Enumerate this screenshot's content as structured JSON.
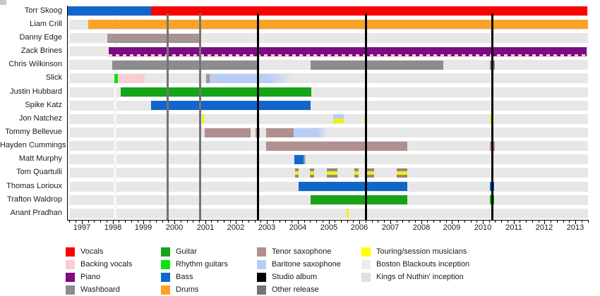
{
  "chart_data": {
    "type": "timeline",
    "axis": {
      "start": 1996.52,
      "end": 2013.41,
      "year_labels": [
        1997,
        1998,
        1999,
        2000,
        2001,
        2002,
        2003,
        2004,
        2005,
        2006,
        2007,
        2008,
        2009,
        2010,
        2011,
        2012,
        2013
      ],
      "minor_tick_step": 0.2
    },
    "palette": {
      "vocals": "#fe0000",
      "backing_vocals": "#f8cdd3",
      "piano": "#7c0c82",
      "washboard": "#8c8c8c",
      "guitar": "#17a317",
      "rhythm_guitars": "#10e010",
      "bass": "#1166c9",
      "drums": "#fca228",
      "tenor_sax": "#b28f8f",
      "baritone_sax": "#b9cdf4",
      "studio_album": "#000000",
      "other_release": "#747474",
      "touring": "#f2ef12",
      "touring_legend": "#ffff00",
      "boston_inception": "#ededed",
      "kings_inception": "#e0e0e0",
      "gray_mauve": "#a69494",
      "quartulli_gray": "#94897f",
      "row_bg": "#e7e7e7"
    },
    "members": [
      {
        "name": "Torr Skoog",
        "segments": [
          {
            "s": 1996.52,
            "e": 1999.24,
            "c": "bass"
          },
          {
            "s": 1999.24,
            "e": 2013.38,
            "c": "vocals"
          }
        ]
      },
      {
        "name": "Liam Crill",
        "segments": [
          {
            "s": 1997.2,
            "e": 2013.41,
            "c": "drums"
          }
        ]
      },
      {
        "name": "Danny Edge",
        "segments": [
          {
            "s": 1997.82,
            "e": 2000.82,
            "c": "gray_mauve"
          }
        ]
      },
      {
        "name": "Zack Brines",
        "segments": [
          {
            "s": 1997.88,
            "e": 2013.38,
            "c": "piano",
            "dash_bottom": "backing_vocals"
          }
        ]
      },
      {
        "name": "Chris Wilkinson",
        "segments": [
          {
            "s": 1997.98,
            "e": 2002.7,
            "c": "washboard"
          },
          {
            "s": 2004.42,
            "e": 2008.72,
            "c": "washboard"
          },
          {
            "s": 2010.22,
            "e": 2010.38,
            "c": "washboard"
          }
        ]
      },
      {
        "name": "Slick",
        "segments": [
          {
            "s": 1998.05,
            "e": 1998.16,
            "c": "rhythm_guitars"
          },
          {
            "s": 1998.16,
            "e": 1999.04,
            "c": "backing_vocals"
          },
          {
            "s": 2001.02,
            "e": 2001.15,
            "c": "tenor_sax"
          },
          {
            "s": 2001.15,
            "e": 2003.88,
            "c": "baritone_sax",
            "fade": true
          }
        ]
      },
      {
        "name": "Justin Hubbard",
        "segments": [
          {
            "s": 1998.26,
            "e": 2004.44,
            "c": "guitar"
          }
        ]
      },
      {
        "name": "Spike Katz",
        "segments": [
          {
            "s": 1999.24,
            "e": 2004.42,
            "c": "bass"
          }
        ]
      },
      {
        "name": "Jon Natchez",
        "segments": [
          {
            "s": 2000.89,
            "e": 2000.97,
            "c": "touring"
          },
          {
            "s": 2005.15,
            "e": 2005.49,
            "stripes": [
              "baritone_sax",
              "touring"
            ]
          },
          {
            "s": 2006.15,
            "e": 2006.23,
            "c": "touring"
          },
          {
            "s": 2010.22,
            "e": 2010.3,
            "c": "touring"
          }
        ]
      },
      {
        "name": "Tommy Bellevue",
        "segments": [
          {
            "s": 2000.98,
            "e": 2002.47,
            "c": "tenor_sax"
          },
          {
            "s": 2002.63,
            "e": 2002.77,
            "c": "tenor_sax"
          },
          {
            "s": 2002.97,
            "e": 2003.87,
            "c": "tenor_sax"
          },
          {
            "s": 2003.87,
            "e": 2004.96,
            "c": "baritone_sax",
            "fade": true
          }
        ]
      },
      {
        "name": "Hayden Cummings",
        "segments": [
          {
            "s": 2002.97,
            "e": 2007.55,
            "c": "tenor_sax"
          },
          {
            "s": 2010.22,
            "e": 2010.38,
            "c": "tenor_sax"
          }
        ]
      },
      {
        "name": "Matt Murphy",
        "segments": [
          {
            "s": 2003.89,
            "e": 2004.28,
            "c": "bass",
            "fade": true
          }
        ]
      },
      {
        "name": "Tom Quartulli",
        "segments": [
          {
            "s": 2003.91,
            "e": 2004.03,
            "stripes": [
              "quartulli_gray",
              "touring",
              "quartulli_gray"
            ]
          },
          {
            "s": 2004.39,
            "e": 2004.53,
            "stripes": [
              "quartulli_gray",
              "touring",
              "quartulli_gray"
            ]
          },
          {
            "s": 2004.94,
            "e": 2005.28,
            "stripes": [
              "quartulli_gray",
              "touring",
              "quartulli_gray"
            ]
          },
          {
            "s": 2005.83,
            "e": 2005.97,
            "stripes": [
              "quartulli_gray",
              "touring",
              "quartulli_gray"
            ]
          },
          {
            "s": 2006.18,
            "e": 2006.47,
            "stripes": [
              "quartulli_gray",
              "touring",
              "quartulli_gray"
            ]
          },
          {
            "s": 2007.21,
            "e": 2007.55,
            "stripes": [
              "quartulli_gray",
              "touring",
              "quartulli_gray"
            ]
          }
        ]
      },
      {
        "name": "Thomas Lorioux",
        "segments": [
          {
            "s": 2004.03,
            "e": 2007.55,
            "c": "bass"
          },
          {
            "s": 2010.22,
            "e": 2010.36,
            "c": "bass"
          }
        ]
      },
      {
        "name": "Trafton Waldrop",
        "segments": [
          {
            "s": 2004.42,
            "e": 2007.55,
            "c": "guitar"
          },
          {
            "s": 2010.22,
            "e": 2010.36,
            "c": "guitar"
          }
        ]
      },
      {
        "name": "Anant Pradhan",
        "segments": [
          {
            "s": 2005.58,
            "e": 2005.66,
            "c": "touring"
          }
        ]
      }
    ],
    "events": {
      "studio_albums": [
        2002.7,
        2006.2,
        2010.3
      ],
      "other_releases": [
        1999.77,
        2000.82
      ],
      "inceptions": [
        {
          "name": "Boston Blackouts inception",
          "year": 1996.56
        },
        {
          "name": "Kings of Nuthin' inception",
          "year": 1998.08
        }
      ]
    },
    "legend_columns": [
      [
        {
          "label": "Vocals",
          "color_key": "vocals"
        },
        {
          "label": "Backing vocals",
          "color_key": "backing_vocals"
        },
        {
          "label": "Piano",
          "color_key": "piano"
        },
        {
          "label": "Washboard",
          "color_key": "washboard"
        }
      ],
      [
        {
          "label": "Guitar",
          "color_key": "guitar"
        },
        {
          "label": "Rhythm guitars",
          "color_key": "rhythm_guitars"
        },
        {
          "label": "Bass",
          "color_key": "bass"
        },
        {
          "label": "Drums",
          "color_key": "drums"
        }
      ],
      [
        {
          "label": "Tenor saxophone",
          "color_key": "tenor_sax"
        },
        {
          "label": "Baritone saxophone",
          "color_key": "baritone_sax"
        },
        {
          "label": "Studio album",
          "color_key": "studio_album"
        },
        {
          "label": "Other release",
          "color_key": "other_release"
        }
      ],
      [
        {
          "label": "Touring/session musicians",
          "color_key": "touring_legend"
        },
        {
          "label": "Boston Blackouts inception",
          "color_key": "boston_inception"
        },
        {
          "label": "Kings of Nuthin' inception",
          "color_key": "kings_inception"
        }
      ]
    ]
  }
}
